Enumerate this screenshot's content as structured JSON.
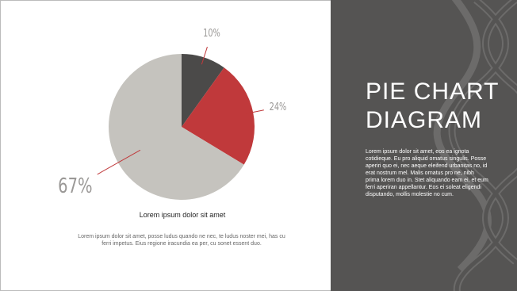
{
  "chart_data": {
    "type": "pie",
    "values": [
      10,
      24,
      67
    ],
    "value_labels": [
      "10%",
      "24%",
      "67%"
    ],
    "colors": [
      "#4b4a49",
      "#c0393b",
      "#c5c3be"
    ],
    "subtitle": "Lorem ipsum dolor sit amet",
    "description": "Lorem ipsum dolor sit amet, posse ludus quando ne nec, te ludus noster mei, has cu ferri impetus. Eius regione iracundia ea per, cu sonet essent duo."
  },
  "panel": {
    "title_lines": [
      "PIE CHART",
      "DIAGRAM"
    ],
    "body": "Lorem ipsum dolor sit amet, eos ea ignota cotidieque. Eu pro aliquid omatus singulis. Posse aperiri quo ei, nec aeque eleifend urbanitas no, id erat nostrum mel. Malis ornatus pro ne, nibh prima lorem duo in. Stet aliquando eam ei, et eum ferri aperiran appellantur. Eos ei soleat eligendi disputando, mollis molestie no cum."
  }
}
